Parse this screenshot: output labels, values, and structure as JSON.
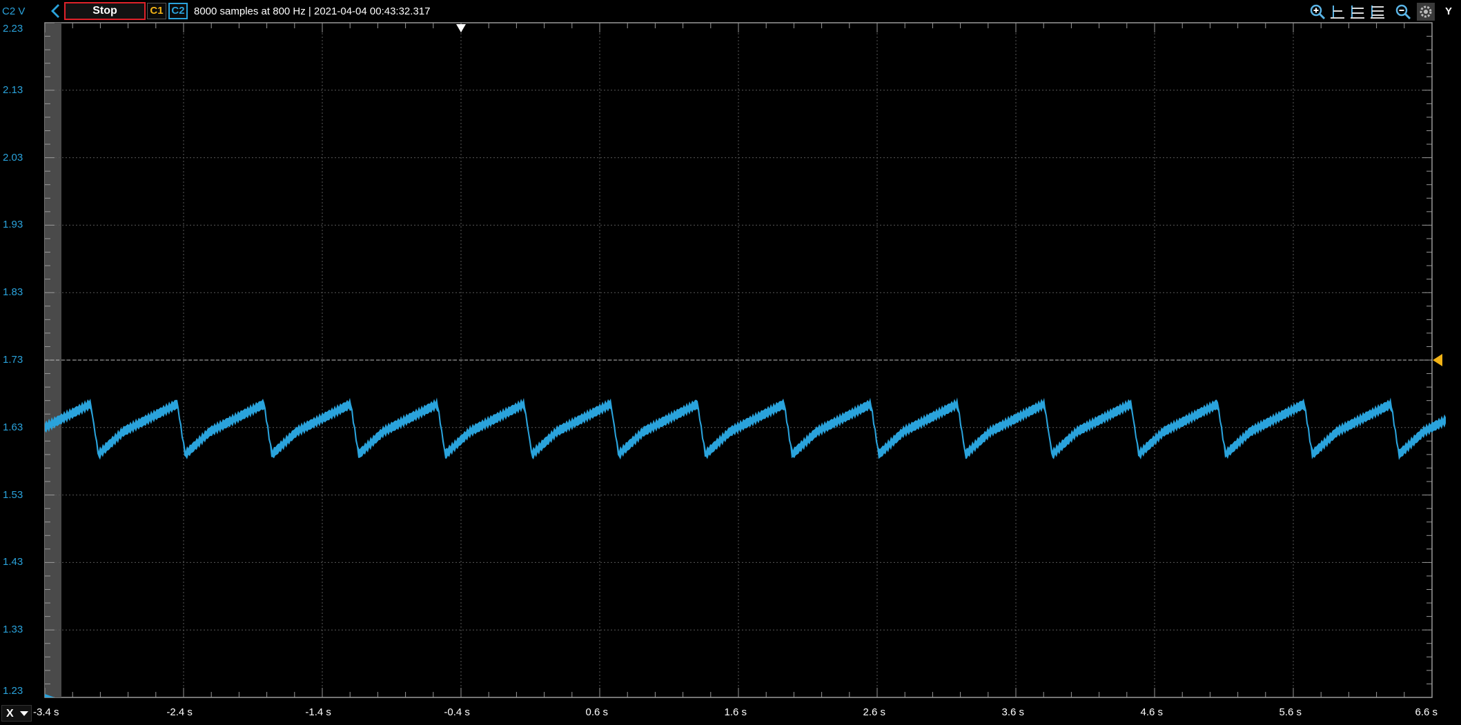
{
  "toolbar": {
    "channel_unit": "C2 V",
    "stop_label": "Stop",
    "c1_label": "C1",
    "c2_label": "C2",
    "status": "8000 samples at 800 Hz | 2021-04-04 00:43:32.317",
    "y_label": "Y",
    "icons": [
      "zoom-in-icon",
      "cursor-a-icon",
      "cursor-b-icon",
      "cursor-c-icon",
      "zoom-out-icon",
      "settings-icon"
    ]
  },
  "x_axis_selector": "X",
  "colors": {
    "background": "#000000",
    "channel2": "#2aa3dc",
    "channel1": "#f2b316",
    "grid": "#5a5a5a",
    "stop_border": "#e0222a"
  },
  "chart_data": {
    "type": "line",
    "title": "",
    "xlabel": "",
    "ylabel": "C2 V",
    "xlim": [
      -3.4,
      6.6
    ],
    "ylim": [
      1.23,
      2.23
    ],
    "x_ticks": [
      "-3.4 s",
      "-2.4 s",
      "-1.4 s",
      "-0.4 s",
      "0.6 s",
      "1.6 s",
      "2.6 s",
      "3.6 s",
      "4.6 s",
      "5.6 s",
      "6.6 s"
    ],
    "y_ticks": [
      "2.23",
      "2.13",
      "2.03",
      "1.93",
      "1.83",
      "1.73",
      "1.63",
      "1.53",
      "1.43",
      "1.33",
      "1.23"
    ],
    "grid": true,
    "trigger_level": 1.73,
    "trigger_time": -0.4,
    "waveform": {
      "shape": "sawtooth",
      "period_s": 0.625,
      "first_peak_s": -3.07,
      "low_v": 1.59,
      "high_v": 1.665,
      "ripple_v": 0.02
    },
    "series": [
      {
        "name": "C2",
        "sample_count": 8000,
        "sample_rate_hz": 800
      }
    ]
  }
}
